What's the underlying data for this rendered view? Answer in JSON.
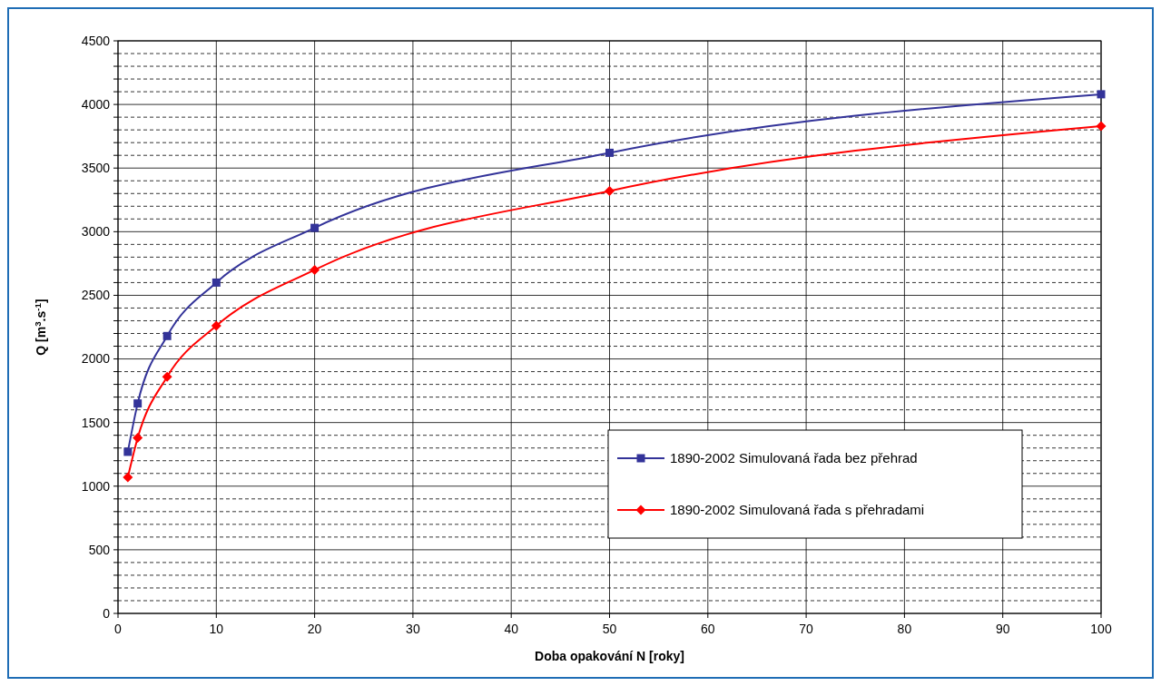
{
  "chart_data": {
    "type": "line",
    "xlabel": "Doba opakování N [roky]",
    "ylabel": "Q [m$^{3}$.s$^{-1}$]",
    "x": [
      1,
      2,
      5,
      10,
      20,
      50,
      100
    ],
    "series": [
      {
        "name": "1890-2002 Simulovaná řada bez přehrad",
        "color": "#333399",
        "marker": "square",
        "values": [
          1270,
          1650,
          2180,
          2600,
          3030,
          3620,
          4080
        ]
      },
      {
        "name": "1890-2002 Simulovaná řada s přehradami",
        "color": "#ff0000",
        "marker": "diamond",
        "values": [
          1070,
          1380,
          1860,
          2260,
          2700,
          3320,
          3830
        ]
      }
    ],
    "xlim": [
      0,
      100
    ],
    "xticks": [
      0,
      10,
      20,
      30,
      40,
      50,
      60,
      70,
      80,
      90,
      100
    ],
    "ylim": [
      0,
      4500
    ],
    "yticks": [
      0,
      {
        "value": 100,
        "label": null
      },
      {
        "value": 200,
        "label": null
      },
      {
        "value": 300,
        "label": null
      },
      {
        "value": 400,
        "label": null
      },
      500,
      {
        "value": 600,
        "label": null
      },
      {
        "value": 700,
        "label": null
      },
      {
        "value": 800,
        "label": null
      },
      {
        "value": 900,
        "label": null
      },
      1000,
      {
        "value": 1100,
        "label": null
      },
      {
        "value": 1200,
        "label": null
      },
      {
        "value": 1300,
        "label": null
      },
      {
        "value": 1400,
        "label": null
      },
      1500,
      {
        "value": 1600,
        "label": null
      },
      {
        "value": 1700,
        "label": null
      },
      {
        "value": 1800,
        "label": null
      },
      {
        "value": 1900,
        "label": null
      },
      2000,
      {
        "value": 2100,
        "label": null
      },
      {
        "value": 2200,
        "label": null
      },
      {
        "value": 2300,
        "label": null
      },
      {
        "value": 2400,
        "label": null
      },
      2500,
      {
        "value": 2600,
        "label": null
      },
      {
        "value": 2700,
        "label": null
      },
      {
        "value": 2800,
        "label": null
      },
      {
        "value": 2900,
        "label": null
      },
      3000,
      {
        "value": 3100,
        "label": null
      },
      {
        "value": 3200,
        "label": null
      },
      {
        "value": 3300,
        "label": null
      },
      {
        "value": 3400,
        "label": null
      },
      3500,
      {
        "value": 3600,
        "label": null
      },
      {
        "value": 3700,
        "label": null
      },
      {
        "value": 3800,
        "label": null
      },
      {
        "value": 3900,
        "label": null
      },
      4000,
      {
        "value": 4100,
        "label": null
      },
      {
        "value": 4200,
        "label": null
      },
      {
        "value": 4300,
        "label": null
      },
      {
        "value": 4400,
        "label": null
      },
      4500
    ],
    "grid": true,
    "legend": "bottom right",
    "line_style": "solid"
  }
}
